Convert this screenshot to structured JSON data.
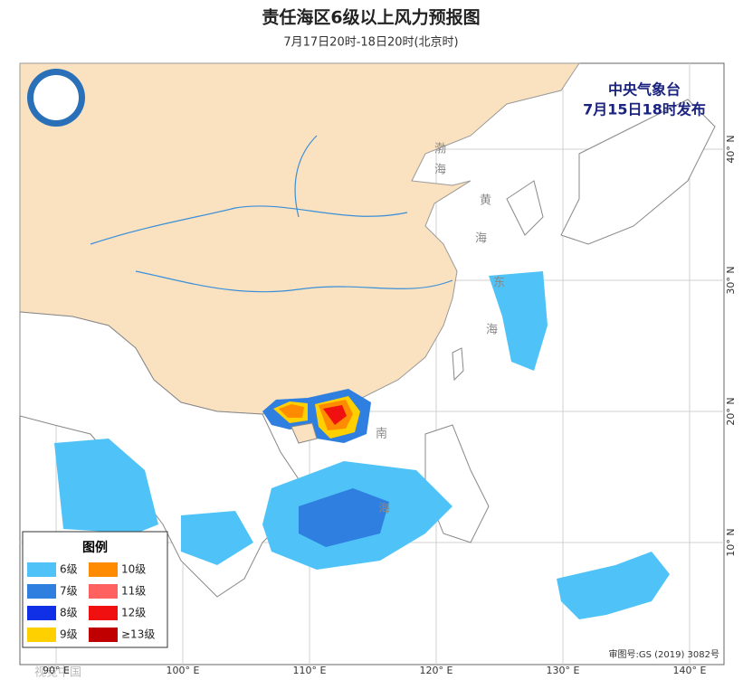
{
  "header": {
    "title": "责任海区6级以上风力预报图",
    "subtitle": "7月17日20时-18日20时(北京时)"
  },
  "issuer": {
    "name": "中央气象台",
    "time": "7月15日18时发布"
  },
  "axes": {
    "lat_ticks": [
      {
        "value": 40,
        "label": "40° N"
      },
      {
        "value": 30,
        "label": "30° N"
      },
      {
        "value": 20,
        "label": "20° N"
      },
      {
        "value": 10,
        "label": "10° N"
      }
    ],
    "lon_ticks": [
      {
        "value": 90,
        "label": "90° E"
      },
      {
        "value": 100,
        "label": "100° E"
      },
      {
        "value": 110,
        "label": "110° E"
      },
      {
        "value": 120,
        "label": "120° E"
      },
      {
        "value": 130,
        "label": "130° E"
      },
      {
        "value": 140,
        "label": "140° E"
      }
    ]
  },
  "sea_labels": [
    [
      "渤",
      "海"
    ],
    [
      "黄",
      "海"
    ],
    [
      "东",
      "海"
    ],
    [
      "南",
      "海"
    ]
  ],
  "legend": {
    "title": "图例",
    "items": [
      {
        "label": "6级",
        "color": "#4fc3f7"
      },
      {
        "label": "7级",
        "color": "#2f7fe0"
      },
      {
        "label": "8级",
        "color": "#1030e8"
      },
      {
        "label": "9级",
        "color": "#ffd000"
      },
      {
        "label": "10级",
        "color": "#ff8c00"
      },
      {
        "label": "11级",
        "color": "#ff6060"
      },
      {
        "label": "12级",
        "color": "#f01010"
      },
      {
        "label": "≥13级",
        "color": "#c00000"
      }
    ]
  },
  "footer": {
    "approval": "审图号:GS (2019) 3082号",
    "watermark": "视觉中国"
  }
}
